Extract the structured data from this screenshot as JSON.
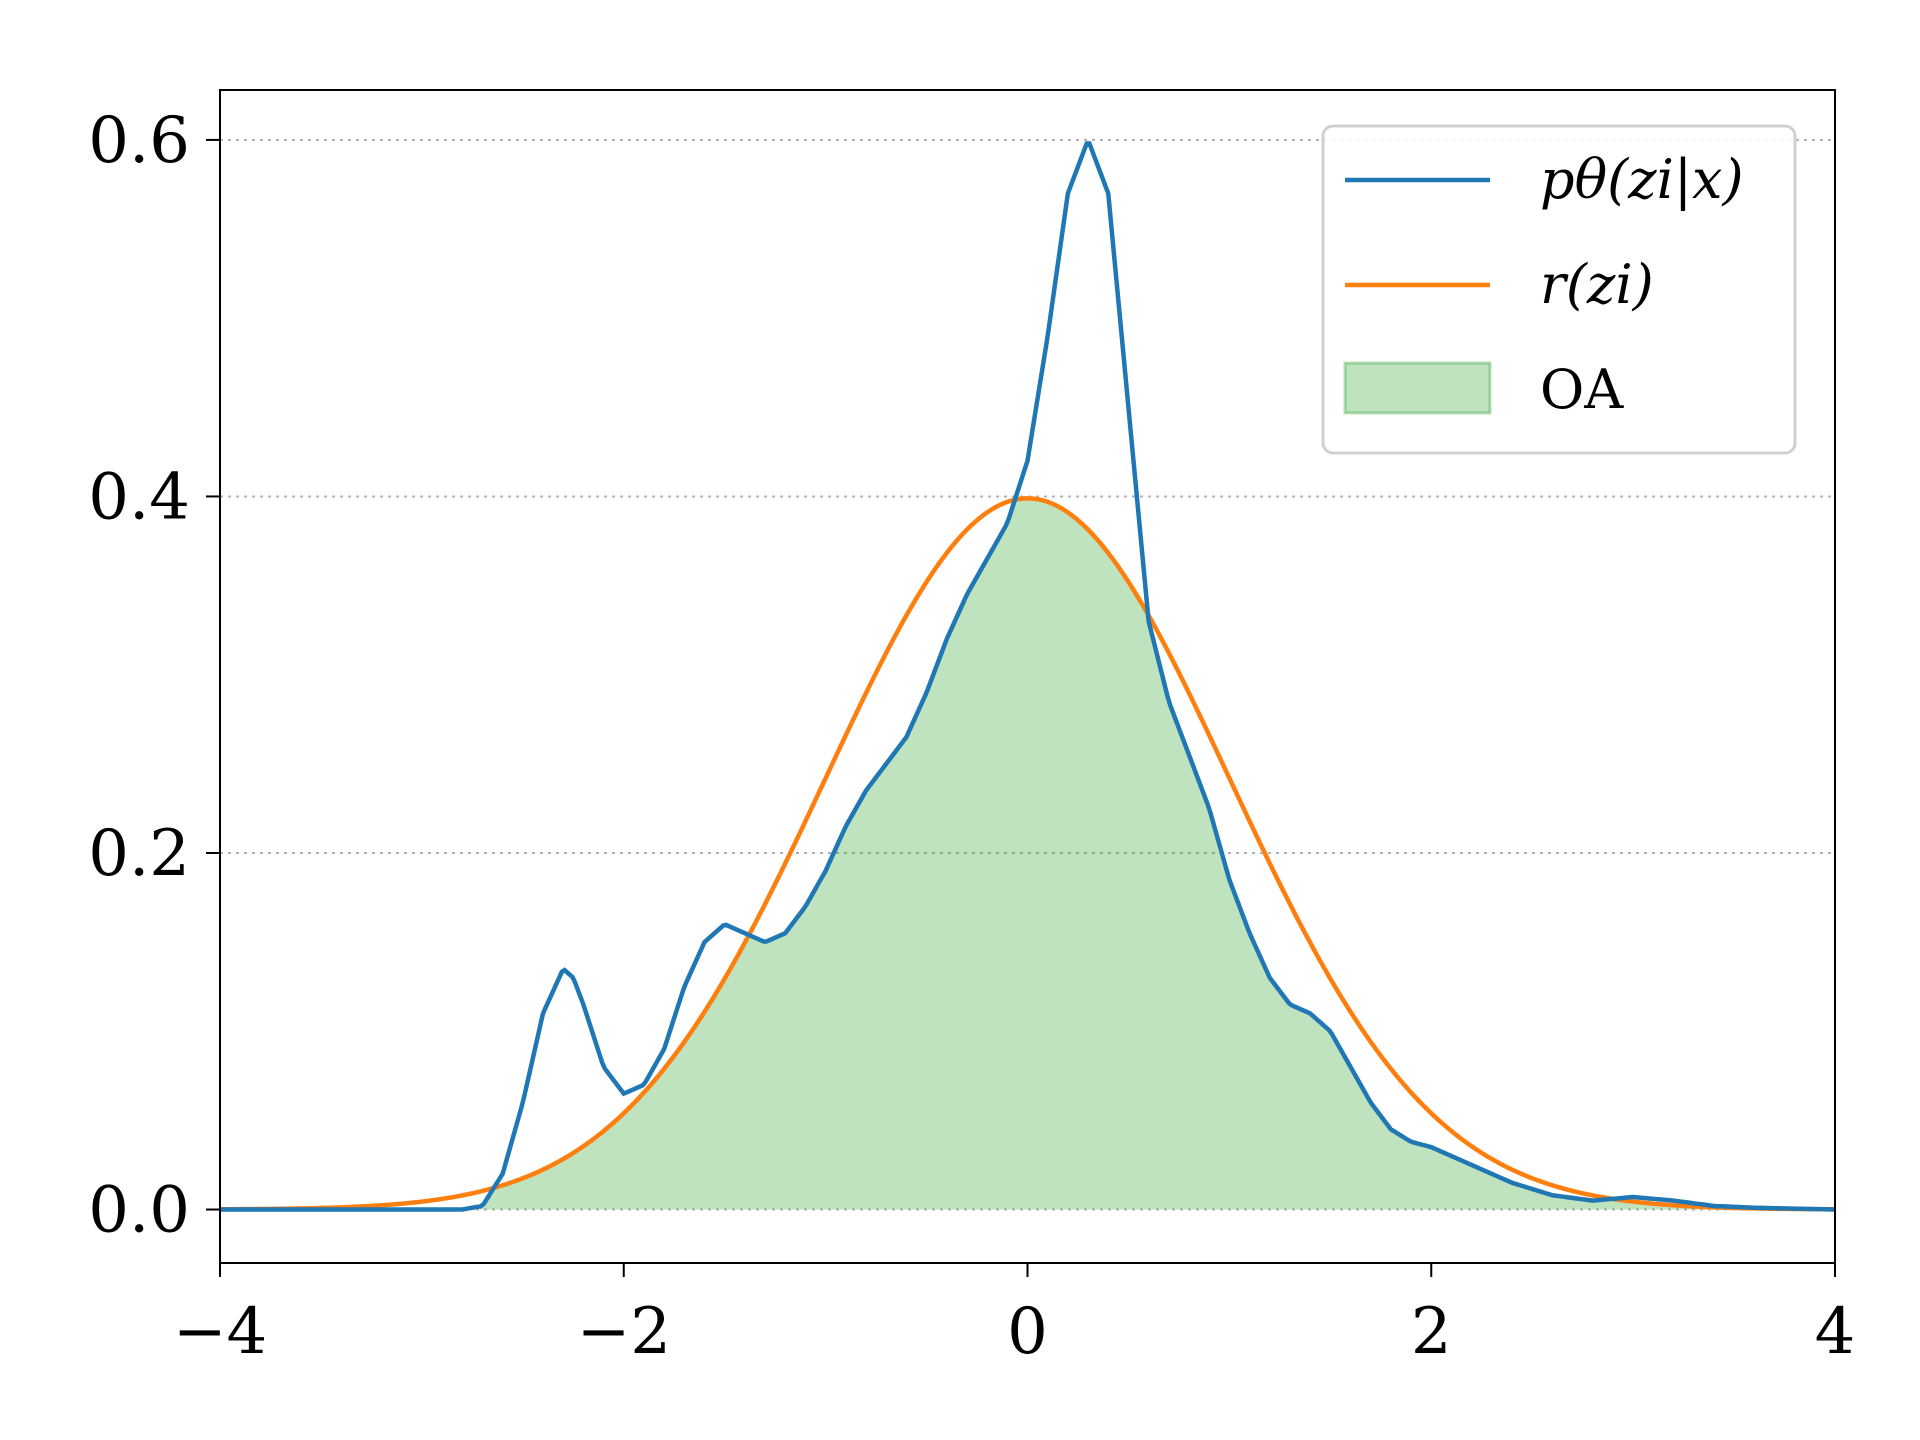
{
  "chart_data": {
    "type": "line",
    "title": "",
    "xlabel": "",
    "ylabel": "",
    "xlim": [
      -4,
      4
    ],
    "ylim": [
      -0.03,
      0.628
    ],
    "xticks": [
      -4,
      -2,
      0,
      2,
      4
    ],
    "yticks": [
      0.0,
      0.2,
      0.4,
      0.6
    ],
    "xtick_labels": [
      "−4",
      "−2",
      "0",
      "2",
      "4"
    ],
    "ytick_labels": [
      "0.0",
      "0.2",
      "0.4",
      "0.6"
    ],
    "grid": "horizontal dotted",
    "legend_position": "upper-right",
    "series": [
      {
        "name": "pθ(zi|x)",
        "color": "#1f77b4",
        "x": [
          -4.0,
          -3.5,
          -3.0,
          -2.8,
          -2.7,
          -2.6,
          -2.5,
          -2.4,
          -2.3,
          -2.25,
          -2.2,
          -2.1,
          -2.0,
          -1.9,
          -1.8,
          -1.7,
          -1.6,
          -1.5,
          -1.4,
          -1.3,
          -1.2,
          -1.1,
          -1.0,
          -0.9,
          -0.8,
          -0.7,
          -0.6,
          -0.5,
          -0.4,
          -0.3,
          -0.2,
          -0.1,
          0.0,
          0.1,
          0.2,
          0.3,
          0.4,
          0.5,
          0.6,
          0.7,
          0.8,
          0.9,
          1.0,
          1.1,
          1.2,
          1.3,
          1.4,
          1.5,
          1.6,
          1.7,
          1.8,
          1.9,
          2.0,
          2.2,
          2.4,
          2.6,
          2.8,
          3.0,
          3.2,
          3.4,
          3.6,
          4.0
        ],
        "y": [
          0.0,
          0.0,
          0.0,
          0.0,
          0.002,
          0.02,
          0.06,
          0.11,
          0.135,
          0.13,
          0.115,
          0.08,
          0.065,
          0.07,
          0.09,
          0.125,
          0.15,
          0.16,
          0.155,
          0.15,
          0.155,
          0.17,
          0.19,
          0.215,
          0.235,
          0.25,
          0.265,
          0.29,
          0.32,
          0.345,
          0.365,
          0.385,
          0.42,
          0.49,
          0.57,
          0.6,
          0.57,
          0.45,
          0.33,
          0.285,
          0.255,
          0.225,
          0.185,
          0.155,
          0.13,
          0.115,
          0.11,
          0.1,
          0.08,
          0.06,
          0.045,
          0.038,
          0.035,
          0.025,
          0.015,
          0.008,
          0.005,
          0.007,
          0.005,
          0.002,
          0.001,
          0.0
        ]
      },
      {
        "name": "r(zi)",
        "color": "#ff7f0e",
        "distribution": "standard normal",
        "x": [
          -4.0,
          -3.6,
          -3.2,
          -2.8,
          -2.4,
          -2.0,
          -1.6,
          -1.2,
          -0.8,
          -0.4,
          0.0,
          0.4,
          0.8,
          1.2,
          1.6,
          2.0,
          2.4,
          2.8,
          3.2,
          3.6,
          4.0
        ],
        "y": [
          0.0001,
          0.0006,
          0.0024,
          0.0079,
          0.0224,
          0.054,
          0.1109,
          0.1942,
          0.2897,
          0.3683,
          0.3989,
          0.3683,
          0.2897,
          0.1942,
          0.1109,
          0.054,
          0.0224,
          0.0079,
          0.0024,
          0.0006,
          0.0001
        ]
      }
    ],
    "fill": {
      "name": "OA",
      "color": "#2ca02c",
      "alpha": 0.3,
      "definition": "min(pθ(zi|x), r(zi))"
    }
  }
}
